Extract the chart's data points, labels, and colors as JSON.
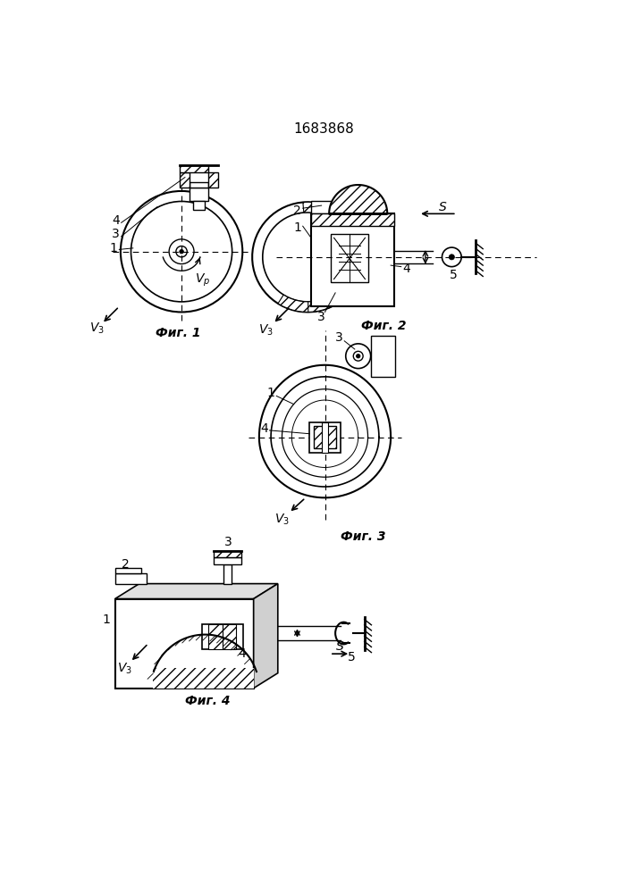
{
  "title": "1683868",
  "title_fontsize": 11,
  "background_color": "#ffffff",
  "fig1_caption": "Фиг. 1",
  "fig2_caption": "Фиг. 2",
  "fig3_caption": "Фиг. 3",
  "fig4_caption": "Фиг. 4",
  "line_color": "#000000"
}
